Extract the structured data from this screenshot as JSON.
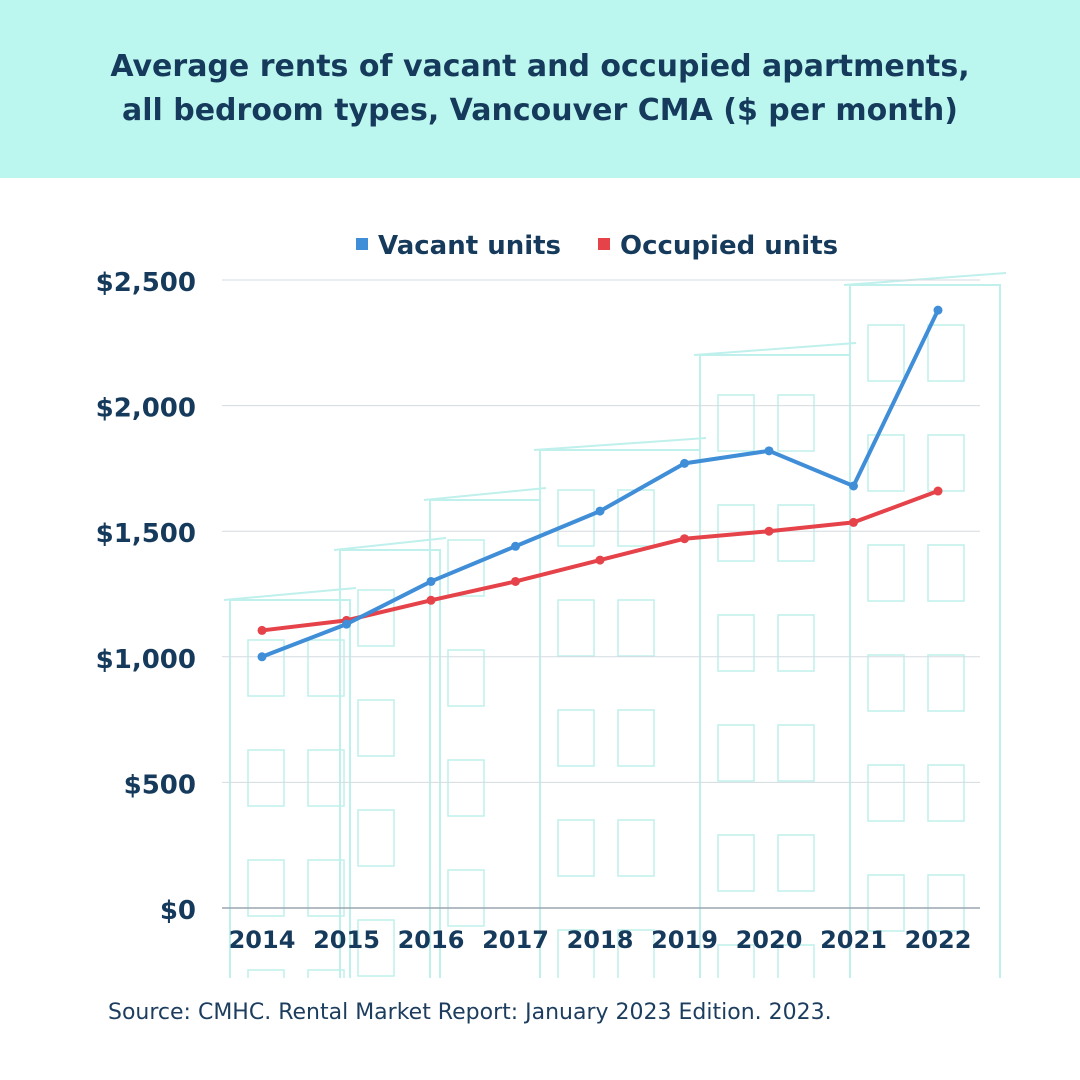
{
  "header": {
    "title_line1": "Average rents of vacant and occupied apartments,",
    "title_line2": "all bedroom types, Vancouver CMA ($ per month)"
  },
  "source": "Source: CMHC. Rental Market Report: January 2023 Edition. 2023.",
  "colors": {
    "header_bg": "#bcf7ef",
    "text": "#153a5b",
    "vacant": "#3f8ed7",
    "occupied": "#e5424a",
    "building_lines": "#bff0ec"
  },
  "chart_data": {
    "type": "line",
    "title": "Average rents of vacant and occupied apartments, all bedroom types, Vancouver CMA ($ per month)",
    "x": [
      "2014",
      "2015",
      "2016",
      "2017",
      "2018",
      "2019",
      "2020",
      "2021",
      "2022"
    ],
    "series": [
      {
        "name": "Vacant units",
        "color": "#3f8ed7",
        "values": [
          1000,
          1130,
          1300,
          1440,
          1580,
          1770,
          1820,
          1680,
          2380
        ]
      },
      {
        "name": "Occupied units",
        "color": "#e5424a",
        "values": [
          1105,
          1145,
          1225,
          1300,
          1385,
          1470,
          1500,
          1535,
          1660
        ]
      }
    ],
    "y_ticks": [
      "$0",
      "$500",
      "$1,000",
      "$1,500",
      "$2,000",
      "$2,500"
    ],
    "ylim": [
      0,
      2500
    ],
    "xlabel": "",
    "ylabel": "",
    "grid": true,
    "legend": "top"
  }
}
